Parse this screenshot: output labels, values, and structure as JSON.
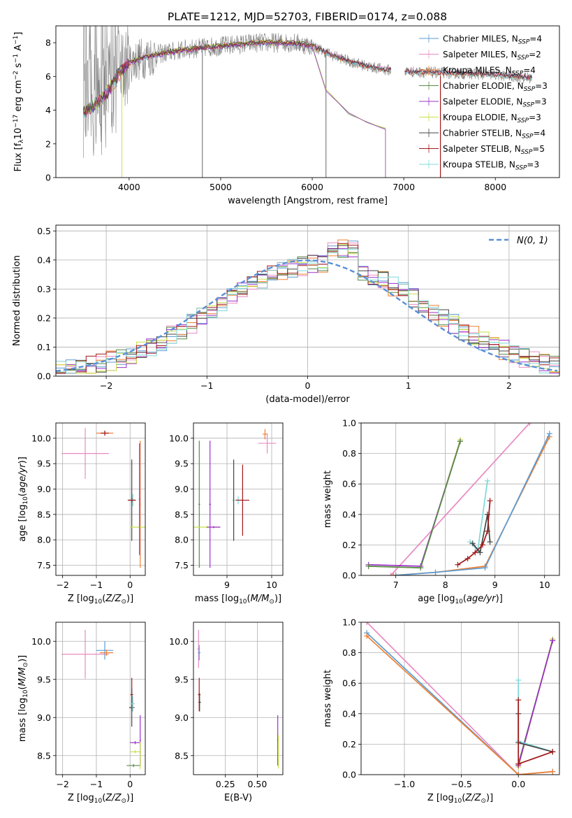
{
  "figure": {
    "title": "PLATE=1212, MJD=52703, FIBERID=0174, z=0.088"
  },
  "colors": {
    "chabrier_miles": "#5b9bd5",
    "salpeter_miles": "#e98ac3",
    "kroupa_miles": "#f08030",
    "chabrier_elodie": "#5a8a4a",
    "salpeter_elodie": "#9b30c8",
    "kroupa_elodie": "#c8e048",
    "chabrier_stelib": "#444444",
    "salpeter_stelib": "#a01818",
    "kroupa_stelib": "#7fd8d8",
    "grid": "#b0b0b0",
    "observed": "#808080"
  },
  "chart_data": [
    {
      "id": "spectrum",
      "type": "line",
      "xlabel": "wavelength [Angstrom, rest frame]",
      "ylabel": "Flux [f_λ10^-17 erg cm^-2 s^-1 A^-1]",
      "xlim": [
        3200,
        8700
      ],
      "ylim": [
        0,
        9
      ],
      "xticks": [
        4000,
        5000,
        6000,
        7000,
        8000
      ],
      "yticks": [
        0,
        2,
        4,
        6,
        8
      ],
      "grid": false,
      "legend": "right",
      "legend_entries": [
        {
          "label": "Chabrier MILES, N",
          "sub": "SSP",
          "val": "=4",
          "color": "chabrier_miles"
        },
        {
          "label": "Salpeter MILES, N",
          "sub": "SSP",
          "val": "=2",
          "color": "salpeter_miles"
        },
        {
          "label": "Kroupa MILES, N",
          "sub": "SSP",
          "val": "=4",
          "color": "kroupa_miles"
        },
        {
          "label": "Chabrier ELODIE, N",
          "sub": "SSP",
          "val": "=3",
          "color": "chabrier_elodie"
        },
        {
          "label": "Salpeter ELODIE, N",
          "sub": "SSP",
          "val": "=3",
          "color": "salpeter_elodie"
        },
        {
          "label": "Kroupa ELODIE, N",
          "sub": "SSP",
          "val": "=3",
          "color": "kroupa_elodie"
        },
        {
          "label": "Chabrier STELIB, N",
          "sub": "SSP",
          "val": "=4",
          "color": "chabrier_stelib"
        },
        {
          "label": "Salpeter STELIB, N",
          "sub": "SSP",
          "val": "=5",
          "color": "salpeter_stelib"
        },
        {
          "label": "Kroupa STELIB, N",
          "sub": "SSP",
          "val": "=3",
          "color": "kroupa_stelib"
        }
      ],
      "continuum": [
        [
          3500,
          3.9
        ],
        [
          3700,
          4.6
        ],
        [
          3800,
          5.4
        ],
        [
          3900,
          6.2
        ],
        [
          4000,
          6.8
        ],
        [
          4200,
          7.2
        ],
        [
          4400,
          7.4
        ],
        [
          4600,
          7.6
        ],
        [
          4800,
          7.7
        ],
        [
          5000,
          7.8
        ],
        [
          5200,
          7.9
        ],
        [
          5400,
          8.0
        ],
        [
          5600,
          8.0
        ],
        [
          5800,
          8.0
        ],
        [
          6000,
          7.8
        ],
        [
          6200,
          7.3
        ],
        [
          6400,
          6.9
        ],
        [
          6600,
          6.6
        ],
        [
          6800,
          6.4
        ],
        [
          7000,
          6.3
        ],
        [
          7200,
          6.25
        ],
        [
          7500,
          6.2
        ],
        [
          8000,
          6.1
        ],
        [
          8400,
          5.9
        ]
      ],
      "elodie_branch": [
        [
          6000,
          7.8
        ],
        [
          6150,
          5.2
        ],
        [
          6400,
          3.8
        ],
        [
          6600,
          3.3
        ],
        [
          6800,
          2.9
        ]
      ]
    },
    {
      "id": "residuals",
      "type": "step",
      "xlabel": "(data-model)/error",
      "ylabel": "Normed distribution",
      "xlim": [
        -2.5,
        2.5
      ],
      "ylim": [
        0,
        0.52
      ],
      "xticks": [
        -2,
        -1,
        0,
        1,
        2
      ],
      "yticks": [
        0.0,
        0.1,
        0.2,
        0.3,
        0.4,
        0.5
      ],
      "grid": true,
      "legend": "top-right",
      "legend_label": "N(0,1)",
      "bin_width": 0.1
    },
    {
      "id": "age_vs_Z",
      "type": "errorbar",
      "xlabel": "Z [log10(Z/Z⊙)]",
      "ylabel": "age  [log10(age/yr)]",
      "xlim": [
        -2.2,
        0.45
      ],
      "ylim": [
        7.3,
        10.3
      ],
      "xticks": [
        -2,
        -1,
        0
      ],
      "yticks": [
        7.5,
        8.0,
        8.5,
        9.0,
        9.5,
        10.0
      ],
      "grid": true,
      "points": [
        {
          "x": -1.33,
          "y": 9.7,
          "xerr": 0.7,
          "yerr": 0.5,
          "color": "salpeter_miles"
        },
        {
          "x": -0.75,
          "y": 10.1,
          "xerr": 0.25,
          "yerr": 0.05,
          "color": "kroupa_miles"
        },
        {
          "x": -0.75,
          "y": 10.1,
          "xerr": 0.12,
          "yerr": 0.05,
          "color": "salpeter_stelib"
        },
        {
          "x": 0.05,
          "y": 8.78,
          "xerr": 0.1,
          "yerr": 0.8,
          "color": "chabrier_stelib"
        },
        {
          "x": 0.08,
          "y": 8.78,
          "xerr": 0.08,
          "yerr": 0.12,
          "color": "kroupa_stelib"
        },
        {
          "x": 0.05,
          "y": 8.78,
          "xerr": 0.12,
          "yerr": 0.05,
          "color": "salpeter_stelib"
        },
        {
          "x": 0.3,
          "y": 8.7,
          "xerr": 0.02,
          "yerr": 1.25,
          "color": "kroupa_miles"
        },
        {
          "x": 0.3,
          "y": 8.25,
          "xerr": 0.3,
          "yerr": 0.02,
          "color": "kroupa_elodie"
        },
        {
          "x": 0.28,
          "y": 8.8,
          "xerr": 0.02,
          "yerr": 1.1,
          "color": "salpeter_elodie"
        }
      ]
    },
    {
      "id": "age_vs_mass",
      "type": "errorbar",
      "xlabel": "mass [log10(M/M⊙)]",
      "ylabel": "",
      "xlim": [
        8.25,
        10.25
      ],
      "ylim": [
        7.3,
        10.3
      ],
      "xticks": [
        9,
        10
      ],
      "yticks": [
        7.5,
        8.0,
        8.5,
        9.0,
        9.5,
        10.0
      ],
      "grid": true,
      "points": [
        {
          "x": 8.38,
          "y": 8.7,
          "xerr": 0.02,
          "yerr": 1.25,
          "color": "chabrier_elodie"
        },
        {
          "x": 8.55,
          "y": 8.25,
          "xerr": 0.3,
          "yerr": 0.02,
          "color": "kroupa_elodie"
        },
        {
          "x": 8.62,
          "y": 8.7,
          "xerr": 0.02,
          "yerr": 1.25,
          "color": "salpeter_elodie"
        },
        {
          "x": 8.7,
          "y": 8.25,
          "xerr": 0.15,
          "yerr": 0.02,
          "color": "salpeter_elodie"
        },
        {
          "x": 9.15,
          "y": 8.78,
          "xerr": 0.02,
          "yerr": 0.8,
          "color": "chabrier_stelib"
        },
        {
          "x": 9.25,
          "y": 8.78,
          "xerr": 0.1,
          "yerr": 0.08,
          "color": "kroupa_stelib"
        },
        {
          "x": 9.35,
          "y": 8.78,
          "xerr": 0.15,
          "yerr": 0.7,
          "color": "salpeter_stelib"
        },
        {
          "x": 9.85,
          "y": 10.08,
          "xerr": 0.05,
          "yerr": 0.1,
          "color": "kroupa_miles"
        },
        {
          "x": 9.9,
          "y": 9.9,
          "xerr": 0.2,
          "yerr": 0.2,
          "color": "salpeter_miles"
        }
      ]
    },
    {
      "id": "mw_vs_age",
      "type": "line",
      "xlabel": "age  [log10(age/yr)]",
      "ylabel": "mass weight",
      "xlim": [
        6.3,
        10.3
      ],
      "ylim": [
        0,
        1
      ],
      "xticks": [
        7,
        8,
        9,
        10
      ],
      "yticks": [
        0.0,
        0.2,
        0.4,
        0.6,
        0.8,
        1.0
      ],
      "grid": true,
      "series": [
        {
          "color": "salpeter_miles",
          "points": [
            [
              6.9,
              0.0
            ],
            [
              9.7,
              1.0
            ]
          ]
        },
        {
          "color": "kroupa_miles",
          "points": [
            [
              6.95,
              0.0
            ],
            [
              7.8,
              0.02
            ],
            [
              8.8,
              0.06
            ],
            [
              10.1,
              0.91
            ]
          ]
        },
        {
          "color": "chabrier_miles",
          "points": [
            [
              7.0,
              0.0
            ],
            [
              7.8,
              0.02
            ],
            [
              8.8,
              0.05
            ],
            [
              10.1,
              0.93
            ]
          ]
        },
        {
          "color": "kroupa_elodie",
          "points": [
            [
              6.45,
              0.06
            ],
            [
              7.5,
              0.05
            ],
            [
              8.3,
              0.89
            ]
          ]
        },
        {
          "color": "salpeter_elodie",
          "points": [
            [
              6.45,
              0.07
            ],
            [
              7.5,
              0.06
            ],
            [
              8.3,
              0.88
            ]
          ]
        },
        {
          "color": "chabrier_elodie",
          "points": [
            [
              6.45,
              0.06
            ],
            [
              7.5,
              0.05
            ],
            [
              8.3,
              0.88
            ]
          ]
        },
        {
          "color": "kroupa_stelib",
          "points": [
            [
              8.5,
              0.22
            ],
            [
              8.65,
              0.16
            ],
            [
              8.85,
              0.62
            ]
          ]
        },
        {
          "color": "chabrier_stelib",
          "points": [
            [
              8.55,
              0.21
            ],
            [
              8.7,
              0.15
            ],
            [
              8.85,
              0.4
            ],
            [
              8.9,
              0.22
            ]
          ]
        },
        {
          "color": "salpeter_stelib",
          "points": [
            [
              8.25,
              0.07
            ],
            [
              8.45,
              0.11
            ],
            [
              8.6,
              0.15
            ],
            [
              8.75,
              0.2
            ],
            [
              8.85,
              0.29
            ],
            [
              8.9,
              0.49
            ]
          ]
        }
      ]
    },
    {
      "id": "mass_vs_Z",
      "type": "errorbar",
      "xlabel": "Z [log10(Z/Z⊙)]",
      "ylabel": "mass [log10(M/M⊙)]",
      "xlim": [
        -2.2,
        0.45
      ],
      "ylim": [
        8.25,
        10.25
      ],
      "xticks": [
        -2,
        -1,
        0
      ],
      "yticks": [
        8.5,
        9.0,
        9.5,
        10.0
      ],
      "grid": true,
      "points": [
        {
          "x": -1.33,
          "y": 9.83,
          "xerr": 0.7,
          "yerr": 0.32,
          "color": "salpeter_miles"
        },
        {
          "x": -0.75,
          "y": 9.88,
          "xerr": 0.25,
          "yerr": 0.12,
          "color": "chabrier_miles"
        },
        {
          "x": -0.7,
          "y": 9.85,
          "xerr": 0.2,
          "yerr": 0.04,
          "color": "kroupa_miles"
        },
        {
          "x": 0.05,
          "y": 9.3,
          "xerr": 0.04,
          "yerr": 0.22,
          "color": "salpeter_stelib"
        },
        {
          "x": 0.05,
          "y": 9.13,
          "xerr": 0.08,
          "yerr": 0.25,
          "color": "chabrier_stelib"
        },
        {
          "x": 0.08,
          "y": 9.18,
          "xerr": 0.06,
          "yerr": 0.1,
          "color": "kroupa_stelib"
        },
        {
          "x": 0.15,
          "y": 8.67,
          "xerr": 0.15,
          "yerr": 0.02,
          "color": "salpeter_elodie"
        },
        {
          "x": 0.15,
          "y": 8.55,
          "xerr": 0.15,
          "yerr": 0.02,
          "color": "kroupa_elodie"
        },
        {
          "x": 0.1,
          "y": 8.37,
          "xerr": 0.2,
          "yerr": 0.02,
          "color": "chabrier_elodie"
        },
        {
          "x": 0.3,
          "y": 8.7,
          "xerr": 0.02,
          "yerr": 0.33,
          "color": "salpeter_elodie"
        },
        {
          "x": 0.3,
          "y": 8.5,
          "xerr": 0.02,
          "yerr": 0.18,
          "color": "kroupa_elodie"
        }
      ]
    },
    {
      "id": "mass_vs_ebv",
      "type": "errorbar",
      "xlabel": "E(B-V)",
      "ylabel": "",
      "xlim": [
        0.0,
        0.7
      ],
      "ylim": [
        8.25,
        10.25
      ],
      "xticks": [
        0.25,
        0.5
      ],
      "xtick_labels": [
        "0.25",
        "0.50"
      ],
      "yticks": [
        8.5,
        9.0,
        9.5,
        10.0
      ],
      "grid": true,
      "points": [
        {
          "x": 0.04,
          "y": 9.9,
          "xerr": 0.01,
          "yerr": 0.25,
          "color": "salpeter_miles"
        },
        {
          "x": 0.045,
          "y": 9.85,
          "xerr": 0.01,
          "yerr": 0.1,
          "color": "chabrier_miles"
        },
        {
          "x": 0.045,
          "y": 9.3,
          "xerr": 0.01,
          "yerr": 0.22,
          "color": "salpeter_stelib"
        },
        {
          "x": 0.048,
          "y": 9.2,
          "xerr": 0.01,
          "yerr": 0.12,
          "color": "chabrier_stelib"
        },
        {
          "x": 0.66,
          "y": 8.7,
          "xerr": 0.005,
          "yerr": 0.33,
          "color": "salpeter_elodie"
        },
        {
          "x": 0.665,
          "y": 8.55,
          "xerr": 0.005,
          "yerr": 0.22,
          "color": "kroupa_elodie"
        }
      ]
    },
    {
      "id": "mw_vs_Z",
      "type": "line",
      "xlabel": "Z [log10(Z/Z⊙)]",
      "ylabel": "mass weight",
      "xlim": [
        -1.38,
        0.36
      ],
      "ylim": [
        0,
        1
      ],
      "xticks": [
        -1.0,
        -0.5,
        0.0
      ],
      "xtick_labels": [
        "−1.0",
        "−0.5",
        "0.0"
      ],
      "yticks": [
        0.0,
        0.2,
        0.4,
        0.6,
        0.8,
        1.0
      ],
      "grid": true,
      "series": [
        {
          "color": "salpeter_miles",
          "points": [
            [
              -1.33,
              1.0
            ],
            [
              0.0,
              0.0
            ]
          ]
        },
        {
          "color": "chabrier_miles",
          "points": [
            [
              -1.33,
              0.93
            ],
            [
              0.0,
              0.0
            ],
            [
              0.3,
              0.02
            ]
          ]
        },
        {
          "color": "kroupa_miles",
          "points": [
            [
              -1.33,
              0.91
            ],
            [
              0.0,
              0.0
            ],
            [
              0.3,
              0.02
            ]
          ]
        },
        {
          "color": "kroupa_elodie",
          "points": [
            [
              0.0,
              0.06
            ],
            [
              0.0,
              0.05
            ],
            [
              0.3,
              0.89
            ]
          ]
        },
        {
          "color": "chabrier_elodie",
          "points": [
            [
              0.0,
              0.07
            ],
            [
              0.3,
              0.88
            ]
          ]
        },
        {
          "color": "salpeter_elodie",
          "points": [
            [
              0.0,
              0.06
            ],
            [
              0.3,
              0.88
            ]
          ]
        },
        {
          "color": "kroupa_stelib",
          "points": [
            [
              0.0,
              0.62
            ],
            [
              0.0,
              0.22
            ],
            [
              0.3,
              0.15
            ]
          ]
        },
        {
          "color": "chabrier_stelib",
          "points": [
            [
              0.0,
              0.4
            ],
            [
              0.0,
              0.21
            ],
            [
              0.3,
              0.15
            ]
          ]
        },
        {
          "color": "salpeter_stelib",
          "points": [
            [
              0.0,
              0.49
            ],
            [
              0.0,
              0.07
            ],
            [
              0.3,
              0.15
            ]
          ]
        }
      ]
    }
  ]
}
